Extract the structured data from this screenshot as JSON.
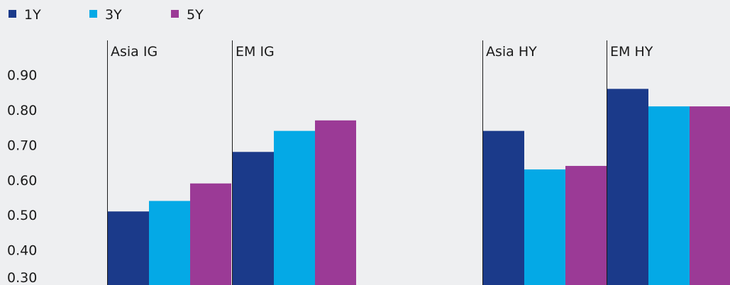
{
  "chart_data": {
    "type": "bar",
    "title": "",
    "xlabel": "",
    "ylabel": "",
    "ylim": [
      0.3,
      0.95
    ],
    "yticks": [
      "0.90",
      "0.80",
      "0.70",
      "0.60",
      "0.50",
      "0.40",
      "0.30"
    ],
    "grid": false,
    "legend_position": "top-left",
    "categories": [
      "Asia IG",
      "EM IG",
      "",
      "Asia HY",
      "EM HY"
    ],
    "series": [
      {
        "name": "1Y",
        "color": "#1b3a8a",
        "values": [
          0.51,
          0.68,
          null,
          0.74,
          0.86
        ]
      },
      {
        "name": "3Y",
        "color": "#04a9e6",
        "values": [
          0.54,
          0.74,
          null,
          0.63,
          0.81
        ]
      },
      {
        "name": "5Y",
        "color": "#9b3a96",
        "values": [
          0.59,
          0.77,
          null,
          0.64,
          0.81
        ]
      }
    ]
  }
}
